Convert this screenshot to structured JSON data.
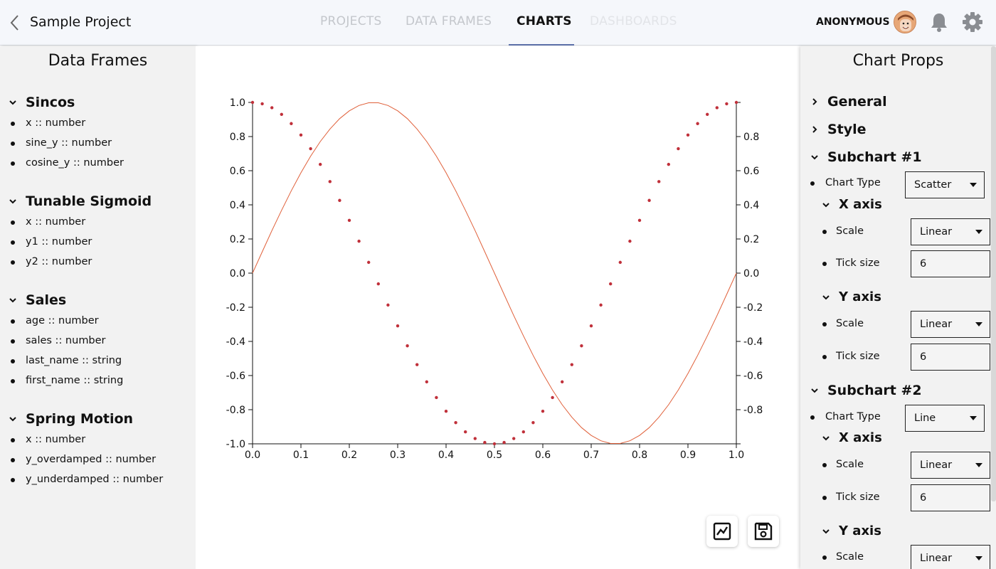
{
  "header": {
    "project_title": "Sample Project",
    "tabs": [
      {
        "label": "PROJECTS",
        "state": "inactive"
      },
      {
        "label": "DATA FRAMES",
        "state": "inactive"
      },
      {
        "label": "CHARTS",
        "state": "active"
      },
      {
        "label": "DASHBOARDS",
        "state": "disabled"
      }
    ],
    "user": "ANONYMOUS"
  },
  "data_frames": {
    "title": "Data Frames",
    "groups": [
      {
        "name": "Sincos",
        "fields": [
          "x :: number",
          "sine_y :: number",
          "cosine_y :: number"
        ]
      },
      {
        "name": "Tunable Sigmoid",
        "fields": [
          "x :: number",
          "y1 :: number",
          "y2 :: number"
        ]
      },
      {
        "name": "Sales",
        "fields": [
          "age :: number",
          "sales :: number",
          "last_name :: string",
          "first_name :: string"
        ]
      },
      {
        "name": "Spring Motion",
        "fields": [
          "x :: number",
          "y_overdamped :: number",
          "y_underdamped :: number"
        ]
      }
    ]
  },
  "chart_props": {
    "title": "Chart Props",
    "general": "General",
    "style": "Style",
    "subchart1": {
      "label": "Subchart #1",
      "chart_type_label": "Chart Type",
      "chart_type": "Scatter",
      "x_axis": {
        "label": "X axis",
        "scale_label": "Scale",
        "scale": "Linear",
        "tick_label": "Tick size",
        "tick": "6"
      },
      "y_axis": {
        "label": "Y axis",
        "scale_label": "Scale",
        "scale": "Linear",
        "tick_label": "Tick size",
        "tick": "6"
      }
    },
    "subchart2": {
      "label": "Subchart #2",
      "chart_type_label": "Chart Type",
      "chart_type": "Line",
      "x_axis": {
        "label": "X axis",
        "scale_label": "Scale",
        "scale": "Linear",
        "tick_label": "Tick size",
        "tick": "6"
      },
      "y_axis": {
        "label": "Y axis",
        "scale_label": "Scale",
        "scale": "Linear"
      }
    }
  },
  "actions": {
    "chart_icon": "line-chart-icon",
    "save_icon": "floppy-disk-icon"
  },
  "chart_data": {
    "type": "line",
    "title": "",
    "xlabel": "",
    "ylabel": "",
    "xlim": [
      0,
      1
    ],
    "ylim": [
      -1,
      1
    ],
    "x_ticks": [
      "0.0",
      "0.1",
      "0.2",
      "0.3",
      "0.4",
      "0.5",
      "0.6",
      "0.7",
      "0.8",
      "0.9",
      "1.0"
    ],
    "y_ticks_left": [
      "1.0",
      "0.8",
      "0.6",
      "0.4",
      "0.2",
      "0.0",
      "-0.2",
      "-0.4",
      "-0.6",
      "-0.8",
      "-1.0"
    ],
    "y_ticks_right": [
      "0.8",
      "0.6",
      "0.4",
      "0.2",
      "0.0",
      "-0.2",
      "-0.4",
      "-0.6",
      "-0.8"
    ],
    "grid": false,
    "legend": "none",
    "series": [
      {
        "kind": "scatter",
        "color": "#c0303a",
        "x": [
          0.0,
          0.02,
          0.04,
          0.06,
          0.08,
          0.1,
          0.12,
          0.14,
          0.16,
          0.18,
          0.2,
          0.22,
          0.24,
          0.26,
          0.28,
          0.3,
          0.32,
          0.34,
          0.36,
          0.38,
          0.4,
          0.42,
          0.44,
          0.46,
          0.48,
          0.5,
          0.52,
          0.54,
          0.56,
          0.58,
          0.6,
          0.62,
          0.64,
          0.66,
          0.68,
          0.7,
          0.72,
          0.74,
          0.76,
          0.78,
          0.8,
          0.82,
          0.84,
          0.86,
          0.88,
          0.9,
          0.92,
          0.94,
          0.96,
          0.98,
          1.0
        ],
        "y": [
          1.0,
          0.992,
          0.969,
          0.93,
          0.876,
          0.809,
          0.729,
          0.637,
          0.536,
          0.426,
          0.309,
          0.187,
          0.063,
          -0.063,
          -0.187,
          -0.309,
          -0.426,
          -0.536,
          -0.637,
          -0.729,
          -0.809,
          -0.876,
          -0.93,
          -0.969,
          -0.992,
          -1.0,
          -0.992,
          -0.969,
          -0.93,
          -0.876,
          -0.809,
          -0.729,
          -0.637,
          -0.536,
          -0.426,
          -0.309,
          -0.187,
          -0.063,
          0.063,
          0.187,
          0.309,
          0.426,
          0.536,
          0.637,
          0.729,
          0.809,
          0.876,
          0.93,
          0.969,
          0.992,
          1.0
        ]
      },
      {
        "kind": "line",
        "color": "#e0603a",
        "x": [
          0.0,
          0.02,
          0.04,
          0.06,
          0.08,
          0.1,
          0.12,
          0.14,
          0.16,
          0.18,
          0.2,
          0.22,
          0.24,
          0.26,
          0.28,
          0.3,
          0.32,
          0.34,
          0.36,
          0.38,
          0.4,
          0.42,
          0.44,
          0.46,
          0.48,
          0.5,
          0.52,
          0.54,
          0.56,
          0.58,
          0.6,
          0.62,
          0.64,
          0.66,
          0.68,
          0.7,
          0.72,
          0.74,
          0.76,
          0.78,
          0.8,
          0.82,
          0.84,
          0.86,
          0.88,
          0.9,
          0.92,
          0.94,
          0.96,
          0.98,
          1.0
        ],
        "y": [
          0.0,
          0.125,
          0.249,
          0.368,
          0.482,
          0.588,
          0.685,
          0.771,
          0.844,
          0.905,
          0.951,
          0.982,
          0.998,
          0.998,
          0.982,
          0.951,
          0.905,
          0.844,
          0.771,
          0.685,
          0.588,
          0.482,
          0.368,
          0.249,
          0.125,
          0.0,
          -0.125,
          -0.249,
          -0.368,
          -0.482,
          -0.588,
          -0.685,
          -0.771,
          -0.844,
          -0.905,
          -0.951,
          -0.982,
          -0.998,
          -0.998,
          -0.982,
          -0.951,
          -0.905,
          -0.844,
          -0.771,
          -0.685,
          -0.588,
          -0.482,
          -0.368,
          -0.249,
          -0.125,
          0.0
        ]
      }
    ]
  }
}
